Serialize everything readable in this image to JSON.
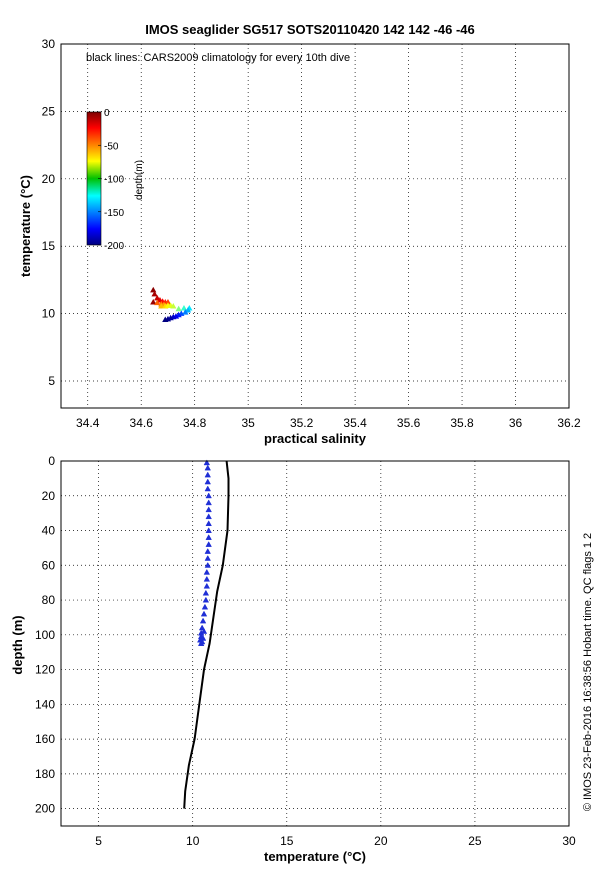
{
  "figure": {
    "title": "IMOS seaglider SG517 SOTS20110420 142  142  -46  -46",
    "side_note": "© IMOS 23-Feb-2016 16:38:56 Hobart time. QC flags 1  2"
  },
  "chart_data": [
    {
      "type": "scatter",
      "name": "ts-diagram",
      "xlabel": "practical salinity",
      "ylabel": "temperature (°C)",
      "xlim": [
        34.3,
        36.2
      ],
      "ylim": [
        3,
        30
      ],
      "xticks": [
        34.4,
        34.6,
        34.8,
        35,
        35.2,
        35.4,
        35.6,
        35.8,
        36,
        36.2
      ],
      "yticks": [
        5,
        10,
        15,
        20,
        25,
        30
      ],
      "grid": true,
      "annotation": "black lines: CARS2009 climatology for every 10th dive",
      "colorbar": {
        "label": "depth(m)",
        "ticks": [
          0,
          -50,
          -100,
          -150,
          -200
        ],
        "range": [
          -200,
          0
        ],
        "colormap": "jet",
        "placement": "upper-left"
      },
      "points": [
        {
          "x": 34.645,
          "y": 11.75,
          "depth": -2
        },
        {
          "x": 34.65,
          "y": 11.45,
          "depth": -8
        },
        {
          "x": 34.66,
          "y": 11.15,
          "depth": -14
        },
        {
          "x": 34.67,
          "y": 11.0,
          "depth": -20
        },
        {
          "x": 34.68,
          "y": 10.9,
          "depth": -26
        },
        {
          "x": 34.69,
          "y": 10.85,
          "depth": -32
        },
        {
          "x": 34.7,
          "y": 10.85,
          "depth": -38
        },
        {
          "x": 34.645,
          "y": 10.85,
          "depth": -5
        },
        {
          "x": 34.66,
          "y": 10.8,
          "depth": -44
        },
        {
          "x": 34.675,
          "y": 10.7,
          "depth": -50
        },
        {
          "x": 34.685,
          "y": 10.65,
          "depth": -56
        },
        {
          "x": 34.675,
          "y": 10.55,
          "depth": -62
        },
        {
          "x": 34.69,
          "y": 10.55,
          "depth": -68
        },
        {
          "x": 34.7,
          "y": 10.6,
          "depth": -74
        },
        {
          "x": 34.71,
          "y": 10.6,
          "depth": -80
        },
        {
          "x": 34.72,
          "y": 10.55,
          "depth": -86
        },
        {
          "x": 34.74,
          "y": 10.35,
          "depth": -100
        },
        {
          "x": 34.76,
          "y": 10.4,
          "depth": -115
        },
        {
          "x": 34.78,
          "y": 10.4,
          "depth": -130
        },
        {
          "x": 34.775,
          "y": 10.25,
          "depth": -140
        },
        {
          "x": 34.765,
          "y": 10.1,
          "depth": -150
        },
        {
          "x": 34.75,
          "y": 10.0,
          "depth": -160
        },
        {
          "x": 34.74,
          "y": 9.9,
          "depth": -170
        },
        {
          "x": 34.73,
          "y": 9.8,
          "depth": -178
        },
        {
          "x": 34.72,
          "y": 9.75,
          "depth": -185
        },
        {
          "x": 34.71,
          "y": 9.68,
          "depth": -192
        },
        {
          "x": 34.7,
          "y": 9.6,
          "depth": -197
        },
        {
          "x": 34.69,
          "y": 9.55,
          "depth": -200
        }
      ]
    },
    {
      "type": "line",
      "name": "temperature-depth-profile",
      "xlabel": "temperature (°C)",
      "ylabel": "depth (m)",
      "xlim": [
        3,
        30
      ],
      "ylim": [
        0,
        210
      ],
      "y_reversed": true,
      "xticks": [
        5,
        10,
        15,
        20,
        25,
        30
      ],
      "yticks": [
        0,
        20,
        40,
        60,
        80,
        100,
        120,
        140,
        160,
        180,
        200
      ],
      "grid": true,
      "series": [
        {
          "style": "line",
          "color": "#000000",
          "points": [
            {
              "x": 11.8,
              "y": 0
            },
            {
              "x": 11.9,
              "y": 10
            },
            {
              "x": 11.9,
              "y": 20
            },
            {
              "x": 11.85,
              "y": 40
            },
            {
              "x": 11.6,
              "y": 60
            },
            {
              "x": 11.3,
              "y": 75
            },
            {
              "x": 11.1,
              "y": 90
            },
            {
              "x": 10.9,
              "y": 105
            },
            {
              "x": 10.6,
              "y": 120
            },
            {
              "x": 10.35,
              "y": 140
            },
            {
              "x": 10.1,
              "y": 160
            },
            {
              "x": 9.8,
              "y": 175
            },
            {
              "x": 9.6,
              "y": 190
            },
            {
              "x": 9.55,
              "y": 200
            }
          ]
        },
        {
          "style": "markers",
          "color": "#1f2fd6",
          "points": [
            {
              "x": 10.75,
              "y": 1
            },
            {
              "x": 10.8,
              "y": 4
            },
            {
              "x": 10.8,
              "y": 8
            },
            {
              "x": 10.8,
              "y": 12
            },
            {
              "x": 10.8,
              "y": 16
            },
            {
              "x": 10.85,
              "y": 20
            },
            {
              "x": 10.85,
              "y": 24
            },
            {
              "x": 10.85,
              "y": 28
            },
            {
              "x": 10.85,
              "y": 32
            },
            {
              "x": 10.85,
              "y": 36
            },
            {
              "x": 10.85,
              "y": 40
            },
            {
              "x": 10.85,
              "y": 44
            },
            {
              "x": 10.85,
              "y": 48
            },
            {
              "x": 10.8,
              "y": 52
            },
            {
              "x": 10.8,
              "y": 56
            },
            {
              "x": 10.8,
              "y": 60
            },
            {
              "x": 10.75,
              "y": 64
            },
            {
              "x": 10.75,
              "y": 68
            },
            {
              "x": 10.75,
              "y": 72
            },
            {
              "x": 10.7,
              "y": 76
            },
            {
              "x": 10.7,
              "y": 80
            },
            {
              "x": 10.65,
              "y": 84
            },
            {
              "x": 10.6,
              "y": 88
            },
            {
              "x": 10.55,
              "y": 92
            },
            {
              "x": 10.5,
              "y": 96
            },
            {
              "x": 10.45,
              "y": 99
            },
            {
              "x": 10.45,
              "y": 101
            },
            {
              "x": 10.4,
              "y": 103
            },
            {
              "x": 10.5,
              "y": 104
            },
            {
              "x": 10.45,
              "y": 105
            },
            {
              "x": 10.55,
              "y": 102
            },
            {
              "x": 10.6,
              "y": 98
            }
          ]
        }
      ]
    }
  ]
}
